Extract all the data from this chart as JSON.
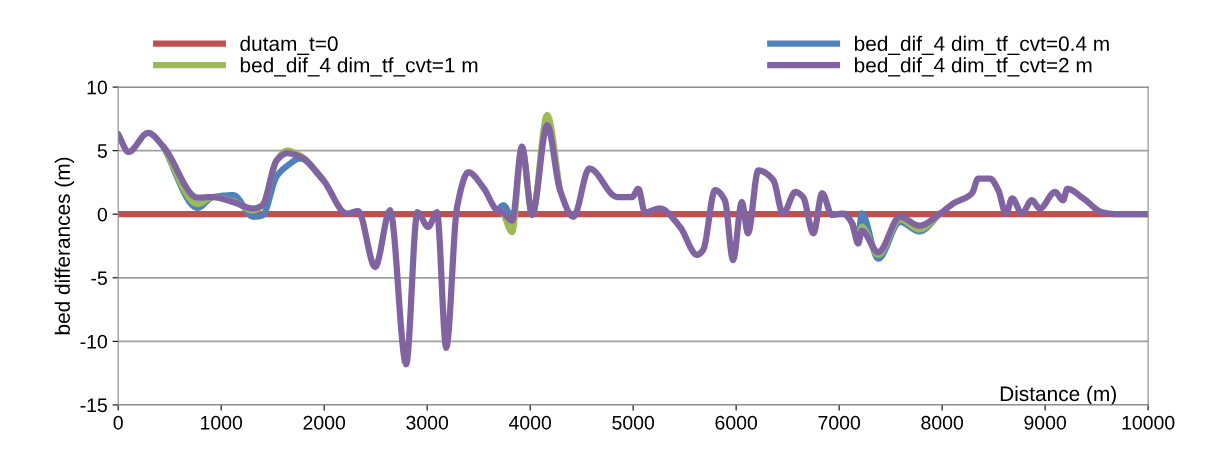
{
  "chart_data": {
    "type": "line",
    "xlabel": "Distance (m)",
    "ylabel": "bed differances (m)",
    "xlim": [
      0,
      10000
    ],
    "xticks": [
      0,
      1000,
      2000,
      3000,
      4000,
      5000,
      6000,
      7000,
      8000,
      9000,
      10000
    ],
    "ylim": [
      -15,
      10
    ],
    "yticks": [
      -15,
      -10,
      -5,
      0,
      5,
      10
    ],
    "grid": "y",
    "legend": "top",
    "marker": "none",
    "line_style": "solid",
    "x": [
      0,
      100,
      290,
      440,
      770,
      920,
      1120,
      1310,
      1400,
      1540,
      1640,
      1770,
      1990,
      2220,
      2330,
      2495,
      2640,
      2796,
      2905,
      3010,
      3095,
      3185,
      3290,
      3400,
      3545,
      3680,
      3740,
      3825,
      3920,
      4020,
      4165,
      4290,
      4420,
      4575,
      4845,
      4990,
      5050,
      5115,
      5260,
      5455,
      5620,
      5680,
      5795,
      5890,
      5970,
      6055,
      6115,
      6215,
      6360,
      6455,
      6575,
      6650,
      6750,
      6835,
      6930,
      7040,
      7125,
      7185,
      7220,
      7380,
      7590,
      7780,
      7980,
      8110,
      8290,
      8350,
      8465,
      8545,
      8620,
      8680,
      8775,
      8870,
      8950,
      9095,
      9175,
      9215,
      9370,
      9555,
      9700,
      10000
    ],
    "series": [
      {
        "name": "dutam_t=0",
        "color": "#c0504d",
        "x": [
          0,
          10000
        ],
        "values": [
          0,
          0
        ]
      },
      {
        "name": "bed_dif_4 dim_tf_cvt=0.4 m",
        "color": "#4f81bd",
        "values": [
          null,
          null,
          null,
          5.3,
          0.5,
          1.35,
          1.5,
          -0.2,
          -0.1,
          3.0,
          3.8,
          4.4,
          2.7,
          null,
          null,
          null,
          null,
          null,
          null,
          null,
          null,
          null,
          null,
          null,
          null,
          0.3,
          0.7,
          -0.5,
          null,
          null,
          null,
          null,
          null,
          null,
          null,
          null,
          null,
          null,
          null,
          null,
          null,
          null,
          null,
          null,
          null,
          null,
          null,
          null,
          null,
          null,
          null,
          null,
          null,
          null,
          null,
          null,
          -0.7,
          -1.8,
          0.05,
          -3.5,
          -0.6,
          -1.35,
          0.05,
          null,
          null,
          null,
          null,
          null,
          null,
          null,
          null,
          null,
          null,
          null,
          null,
          null,
          null,
          null,
          null,
          null
        ]
      },
      {
        "name": "bed_dif_4 dim_tf_cvt=1 m",
        "color": "#9bbb59",
        "values": [
          null,
          null,
          null,
          5.3,
          0.8,
          1.35,
          1.0,
          0.3,
          0.7,
          4.25,
          5.0,
          4.6,
          2.7,
          null,
          null,
          null,
          null,
          null,
          null,
          null,
          null,
          null,
          null,
          null,
          null,
          null,
          0.1,
          -1.4,
          5.3,
          -0.05,
          7.8,
          1.9,
          null,
          null,
          null,
          null,
          null,
          null,
          null,
          null,
          null,
          null,
          null,
          null,
          null,
          null,
          null,
          null,
          null,
          null,
          null,
          null,
          null,
          null,
          null,
          null,
          -0.7,
          -2.0,
          -1.0,
          -3.2,
          -0.4,
          -1.2,
          0.05,
          null,
          null,
          null,
          null,
          null,
          null,
          null,
          null,
          null,
          null,
          null,
          null,
          null,
          null,
          null,
          null,
          null
        ]
      },
      {
        "name": "bed_dif_4 dim_tf_cvt=2 m",
        "color": "#8064a2",
        "values": [
          6.3,
          4.9,
          6.4,
          5.3,
          1.3,
          1.35,
          0.95,
          0.45,
          0.7,
          4.25,
          4.8,
          4.5,
          2.7,
          0.05,
          0.25,
          -4.15,
          0.3,
          -11.8,
          0.15,
          -1.0,
          0.15,
          -10.5,
          0.55,
          3.3,
          2.1,
          0.3,
          0.1,
          -0.5,
          5.3,
          -0.05,
          7.0,
          1.9,
          -0.2,
          3.6,
          1.35,
          1.35,
          2.0,
          0.15,
          0.45,
          -1.0,
          -3.2,
          -2.8,
          1.9,
          1.1,
          -3.6,
          0.95,
          -1.5,
          3.45,
          2.7,
          0.05,
          1.75,
          1.35,
          -1.5,
          1.65,
          -0.05,
          0.05,
          -0.7,
          -2.3,
          -1.3,
          -3.0,
          -0.2,
          -0.9,
          0.05,
          0.85,
          1.65,
          2.8,
          2.8,
          1.9,
          0.05,
          1.25,
          0.05,
          1.1,
          0.45,
          1.75,
          1.1,
          2.0,
          1.25,
          0.15,
          0,
          0
        ]
      }
    ]
  }
}
